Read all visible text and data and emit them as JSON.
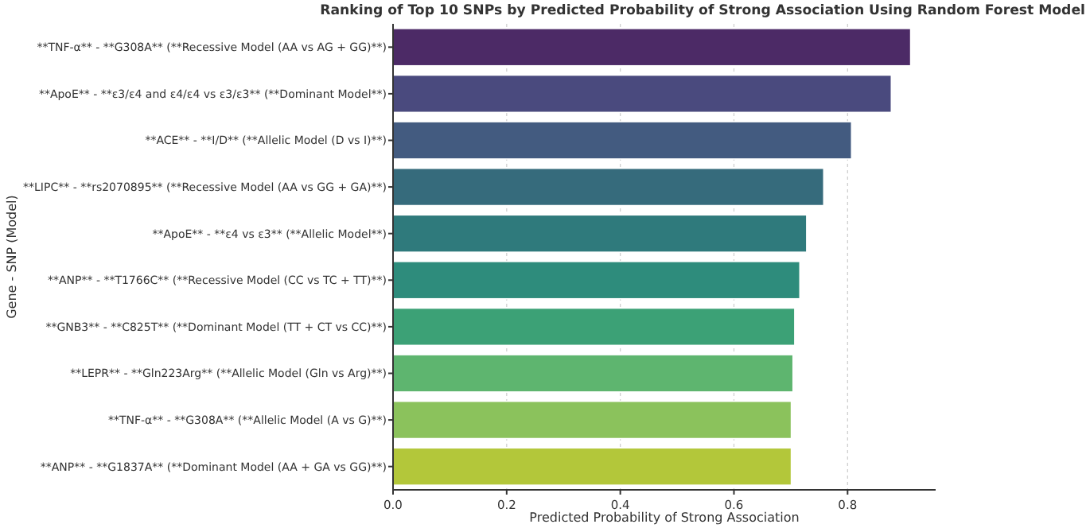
{
  "chart_data": {
    "type": "bar",
    "orientation": "horizontal",
    "title": "Ranking of Top 10 SNPs by Predicted Probability of Strong Association Using Random Forest Model",
    "xlabel": "Predicted Probability of Strong Association",
    "ylabel": "Gene - SNP (Model)",
    "categories": [
      "**TNF-α** - **G308A** (**Recessive Model (AA vs AG + GG)**)",
      "**ApoE** - **ε3/ε4 and ε4/ε4 vs ε3/ε3** (**Dominant Model**)",
      "**ACE** - **I/D** (**Allelic Model (D vs I)**)",
      "**LIPC** - **rs2070895** (**Recessive Model (AA vs GG + GA)**)",
      "**ApoE** - **ε4 vs ε3** (**Allelic Model**)",
      "**ANP** - **T1766C** (**Recessive Model (CC vs TC + TT)**)",
      "**GNB3** - **C825T** (**Dominant Model (TT + CT vs CC)**)",
      "**LEPR** - **Gln223Arg** (**Allelic Model (Gln vs Arg)**)",
      "**TNF-α** - **G308A** (**Allelic Model (A vs G)**)",
      "**ANP** - **G1837A** (**Dominant Model (AA + GA vs GG)**)"
    ],
    "values": [
      0.911,
      0.877,
      0.807,
      0.758,
      0.728,
      0.716,
      0.707,
      0.704,
      0.701,
      0.701
    ],
    "colors": [
      "#4c2a66",
      "#4a4a7e",
      "#435b80",
      "#366b7c",
      "#2f7a7c",
      "#2e8c7c",
      "#3ca176",
      "#5eb56f",
      "#8bc25c",
      "#b3c73a"
    ],
    "xlim": [
      0,
      0.955
    ],
    "xticks": [
      {
        "value": 0,
        "label": "0.0"
      },
      {
        "value": 0.2,
        "label": "0.2"
      },
      {
        "value": 0.4,
        "label": "0.4"
      },
      {
        "value": 0.6,
        "label": "0.6"
      },
      {
        "value": 0.8,
        "label": "0.8"
      }
    ],
    "grid": "x"
  }
}
